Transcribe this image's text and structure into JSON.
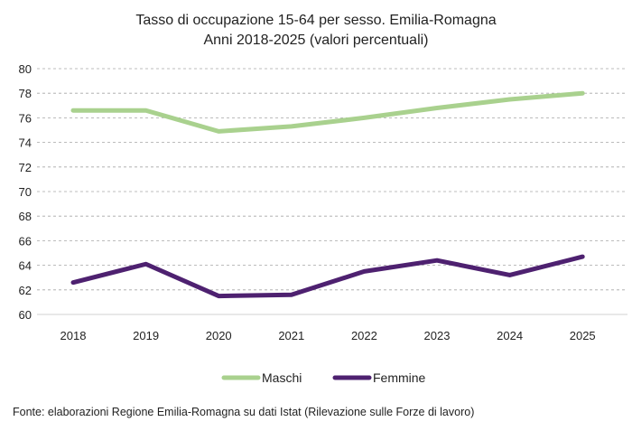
{
  "chart_data": {
    "type": "line",
    "title": "Tasso di occupazione 15-64 per sesso. Emilia-Romagna",
    "subtitle": "Anni 2018-2025 (valori percentuali)",
    "categories": [
      "2018",
      "2019",
      "2020",
      "2021",
      "2022",
      "2023",
      "2024",
      "2025"
    ],
    "series": [
      {
        "name": "Maschi",
        "color": "#a9d18e",
        "values": [
          76.6,
          76.6,
          74.9,
          75.3,
          76.0,
          76.8,
          77.5,
          78.0
        ]
      },
      {
        "name": "Femmine",
        "color": "#4e2170",
        "values": [
          62.6,
          64.1,
          61.5,
          61.6,
          63.5,
          64.4,
          63.2,
          64.7
        ]
      }
    ],
    "ylim": [
      60,
      80
    ],
    "yticks": [
      "60",
      "62",
      "64",
      "66",
      "68",
      "70",
      "72",
      "74",
      "76",
      "78",
      "80"
    ],
    "grid": true,
    "legend": "bottom",
    "xlabel": "",
    "ylabel": ""
  },
  "source": "Fonte: elaborazioni Regione Emilia-Romagna su dati Istat (Rilevazione sulle Forze di lavoro)"
}
